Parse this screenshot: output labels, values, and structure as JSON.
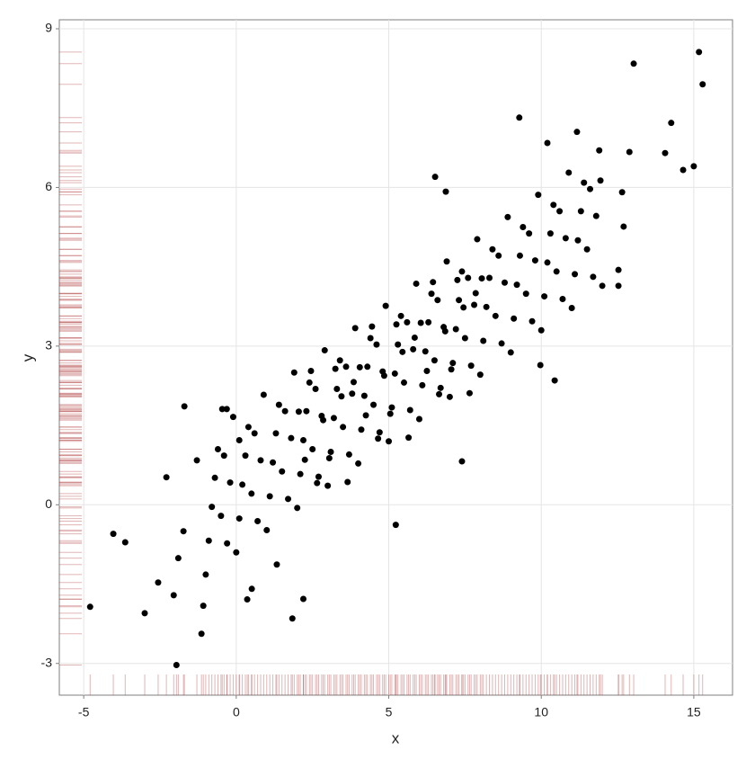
{
  "chart_data": {
    "type": "scatter",
    "x_label": "x",
    "y_label": "y",
    "xlim": [
      -5.8,
      16.27
    ],
    "ylim": [
      -3.6,
      9.17
    ],
    "xticks": [
      -5,
      0,
      5,
      10,
      15
    ],
    "yticks": [
      -3,
      0,
      3,
      6,
      9
    ],
    "grid": true,
    "rug": true,
    "color": "#000000",
    "rug_color": "#a52a2a",
    "x": [
      -4.79,
      -4.03,
      -3.64,
      -3.0,
      -2.56,
      -2.29,
      -2.05,
      -1.96,
      -1.9,
      -1.73,
      -1.7,
      -1.14,
      -1.08,
      -1.29,
      -0.46,
      -0.31,
      0.1,
      9.28,
      13.03,
      15.17,
      15.29,
      14.26,
      14.06,
      14.65,
      15.0,
      12.89,
      12.65,
      12.7,
      12.53,
      12.53,
      11.17,
      10.2,
      6.52,
      6.87,
      11.94,
      9.97,
      10.44,
      7.4,
      5.23,
      1.84,
      2.2,
      1.33,
      0.36,
      0.51,
      -1.0,
      -0.9,
      -0.8,
      -0.7,
      -0.6,
      -0.5,
      -0.4,
      -0.3,
      -0.2,
      -0.1,
      0.0,
      0.1,
      0.2,
      0.3,
      0.4,
      0.5,
      0.6,
      0.7,
      0.8,
      0.9,
      1.0,
      1.1,
      1.2,
      1.3,
      1.4,
      1.5,
      1.6,
      1.7,
      1.8,
      1.9,
      2.0,
      2.1,
      2.2,
      2.3,
      2.4,
      2.5,
      2.6,
      2.7,
      2.8,
      2.9,
      3.0,
      3.1,
      3.2,
      3.3,
      3.4,
      3.5,
      3.6,
      3.7,
      3.8,
      3.9,
      4.0,
      4.1,
      4.2,
      4.3,
      4.4,
      4.5,
      4.6,
      4.7,
      4.8,
      4.9,
      5.0,
      5.1,
      5.2,
      5.3,
      5.4,
      5.5,
      5.6,
      5.7,
      5.8,
      5.9,
      6.0,
      6.1,
      6.2,
      6.3,
      6.4,
      6.5,
      6.6,
      6.7,
      6.8,
      6.9,
      7.0,
      7.1,
      7.2,
      7.3,
      7.4,
      7.5,
      7.6,
      7.7,
      7.8,
      7.9,
      8.0,
      8.1,
      8.2,
      8.3,
      8.4,
      8.5,
      8.6,
      8.7,
      8.8,
      8.9,
      9.0,
      9.1,
      9.2,
      9.3,
      9.4,
      9.5,
      9.6,
      9.7,
      9.8,
      9.9,
      10.0,
      10.1,
      10.2,
      10.3,
      10.4,
      10.5,
      10.6,
      10.7,
      10.8,
      10.9,
      11.0,
      11.1,
      11.2,
      11.3,
      11.4,
      11.5,
      11.6,
      11.7,
      11.8,
      11.9,
      12.0,
      2.05,
      2.25,
      2.45,
      2.65,
      2.85,
      3.05,
      3.25,
      3.45,
      3.65,
      3.85,
      4.05,
      4.25,
      4.45,
      4.65,
      4.85,
      5.05,
      5.25,
      5.45,
      5.65,
      5.85,
      6.05,
      6.25,
      6.45,
      6.65,
      6.85,
      7.05,
      7.25,
      7.45,
      7.65,
      7.85,
      8.05
    ],
    "y": [
      -1.93,
      -0.55,
      -0.71,
      -2.05,
      -1.47,
      0.52,
      -1.71,
      -3.03,
      -1.01,
      -0.5,
      1.86,
      -2.44,
      -1.91,
      0.84,
      1.81,
      1.81,
      1.22,
      7.32,
      8.34,
      8.56,
      7.95,
      7.22,
      6.65,
      6.33,
      6.4,
      6.67,
      5.91,
      5.26,
      4.44,
      4.14,
      7.05,
      6.84,
      6.2,
      5.92,
      6.13,
      2.64,
      2.35,
      0.82,
      -0.38,
      -2.15,
      -1.78,
      -1.13,
      -1.79,
      -1.59,
      -1.32,
      -0.68,
      -0.04,
      0.51,
      1.05,
      -0.21,
      0.93,
      -0.73,
      0.42,
      1.66,
      -0.9,
      -0.26,
      0.38,
      0.93,
      1.47,
      0.21,
      1.35,
      -0.31,
      0.84,
      2.08,
      -0.48,
      0.16,
      0.8,
      1.35,
      1.89,
      0.63,
      1.77,
      0.11,
      1.26,
      2.5,
      -0.06,
      0.58,
      1.22,
      1.77,
      2.31,
      1.05,
      2.19,
      0.53,
      1.68,
      2.92,
      0.36,
      1.0,
      1.64,
      2.19,
      2.73,
      1.47,
      2.61,
      0.95,
      2.1,
      3.34,
      0.78,
      1.42,
      2.06,
      2.61,
      3.15,
      1.89,
      3.03,
      1.37,
      2.52,
      3.76,
      1.2,
      1.84,
      2.48,
      3.03,
      3.57,
      2.31,
      3.45,
      1.79,
      2.94,
      4.18,
      1.62,
      2.26,
      2.9,
      3.45,
      3.99,
      2.73,
      3.87,
      2.21,
      3.36,
      4.6,
      2.04,
      2.68,
      3.32,
      3.87,
      4.41,
      3.15,
      4.29,
      2.63,
      3.78,
      5.02,
      2.46,
      3.1,
      3.74,
      4.29,
      4.83,
      3.57,
      4.71,
      3.05,
      4.2,
      5.44,
      2.88,
      3.52,
      4.16,
      4.71,
      5.25,
      3.99,
      5.13,
      3.47,
      4.62,
      5.86,
      3.3,
      3.94,
      4.58,
      5.13,
      5.67,
      4.41,
      5.55,
      3.89,
      5.04,
      6.28,
      3.72,
      4.36,
      5.0,
      5.55,
      6.09,
      4.83,
      5.97,
      4.31,
      5.46,
      6.7,
      4.14,
      1.76,
      0.85,
      2.53,
      0.41,
      1.6,
      0.88,
      2.57,
      2.05,
      0.43,
      2.32,
      2.6,
      1.69,
      3.37,
      1.25,
      2.44,
      1.72,
      3.41,
      2.89,
      1.27,
      3.16,
      3.44,
      2.53,
      4.21,
      2.09,
      3.28,
      2.56,
      4.25,
      3.73,
      2.11,
      4.0,
      4.28
    ]
  }
}
